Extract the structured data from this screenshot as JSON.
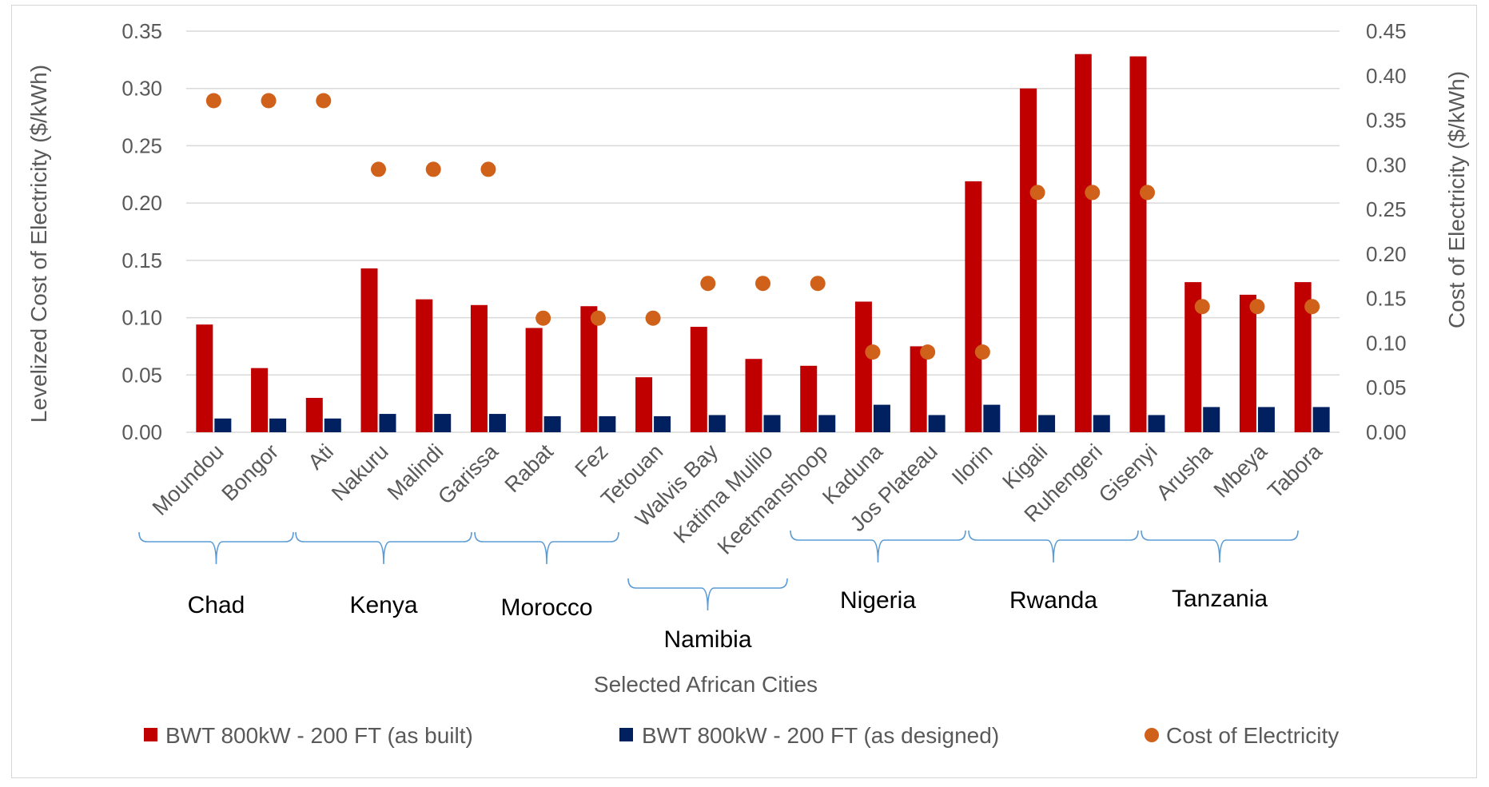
{
  "chart_data": {
    "type": "bar",
    "title": "",
    "xlabel": "Selected African Cities",
    "ylabel": "Levelized Cost of Electricity ($/kWh)",
    "y2label": "Cost of Electricity ($/kWh)",
    "ylim": [
      0,
      0.35
    ],
    "y2lim": [
      0,
      0.45
    ],
    "yticks": [
      "0.00",
      "0.05",
      "0.10",
      "0.15",
      "0.20",
      "0.25",
      "0.30",
      "0.35"
    ],
    "y2ticks": [
      "0.00",
      "0.05",
      "0.10",
      "0.15",
      "0.20",
      "0.25",
      "0.30",
      "0.35",
      "0.40",
      "0.45"
    ],
    "grid": true,
    "legend_position": "bottom",
    "categories": [
      "Moundou",
      "Bongor",
      "Ati",
      "Nakuru",
      "Malindi",
      "Garissa",
      "Rabat",
      "Fez",
      "Tetouan",
      "Walvis Bay",
      "Katima Mulilo",
      "Keetmanshoop",
      "Kaduna",
      "Jos Plateau",
      "Ilorin",
      "Kigali",
      "Ruhengeri",
      "Gisenyi",
      "Arusha",
      "Mbeya",
      "Tabora"
    ],
    "groups": [
      {
        "name": "Chad",
        "from": 0,
        "to": 2
      },
      {
        "name": "Kenya",
        "from": 3,
        "to": 5
      },
      {
        "name": "Morocco",
        "from": 6,
        "to": 8
      },
      {
        "name": "Namibia",
        "from": 9,
        "to": 11
      },
      {
        "name": "Nigeria",
        "from": 12,
        "to": 14
      },
      {
        "name": "Rwanda",
        "from": 15,
        "to": 17
      },
      {
        "name": "Tanzania",
        "from": 18,
        "to": 20
      }
    ],
    "series": [
      {
        "name": "BWT 800kW - 200 FT (as built)",
        "color": "#c00000",
        "axis": "left",
        "kind": "bar",
        "values": [
          0.094,
          0.056,
          0.03,
          0.143,
          0.116,
          0.111,
          0.091,
          0.11,
          0.048,
          0.092,
          0.064,
          0.058,
          0.114,
          0.075,
          0.219,
          0.3,
          0.33,
          0.328,
          0.131,
          0.12,
          0.131
        ]
      },
      {
        "name": "BWT 800kW - 200 FT (as designed)",
        "color": "#002060",
        "axis": "left",
        "kind": "bar",
        "values": [
          0.012,
          0.012,
          0.012,
          0.016,
          0.016,
          0.016,
          0.014,
          0.014,
          0.014,
          0.015,
          0.015,
          0.015,
          0.024,
          0.015,
          0.024,
          0.015,
          0.015,
          0.015,
          0.022,
          0.022,
          0.022
        ]
      },
      {
        "name": "Cost of Electricity",
        "color": "#d0611a",
        "axis": "right",
        "kind": "dot",
        "values": [
          0.372,
          0.372,
          0.372,
          0.295,
          0.295,
          0.295,
          0.128,
          0.128,
          0.128,
          0.167,
          0.167,
          0.167,
          0.09,
          0.09,
          0.09,
          0.269,
          0.269,
          0.269,
          0.141,
          0.141,
          0.141
        ]
      }
    ]
  }
}
